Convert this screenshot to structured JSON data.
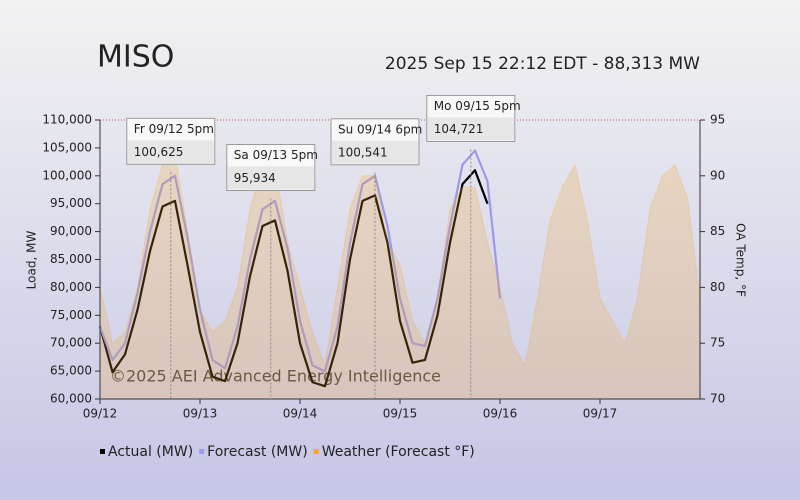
{
  "chart_data": {
    "type": "line",
    "title": "MISO",
    "subtitle": "2025 Sep 15 22:12 EDT - 88,313 MW",
    "watermark": "©2025 AEI Advanced Energy Intelligence",
    "y_label": "Load, MW",
    "y2_label": "OA Temp, °F",
    "x": [
      0,
      0.125,
      0.25,
      0.375,
      0.5,
      0.625,
      0.75,
      0.875,
      1,
      1.125,
      1.25,
      1.375,
      1.5,
      1.625,
      1.75,
      1.875,
      2,
      2.125,
      2.25,
      2.375,
      2.5,
      2.625,
      2.75,
      2.875,
      3,
      3.125,
      3.25,
      3.375,
      3.5,
      3.625,
      3.75,
      3.875,
      4,
      4.125,
      4.25,
      4.375,
      4.5,
      4.625,
      4.75,
      4.875,
      5,
      5.125,
      5.25,
      5.375,
      5.5,
      5.625,
      5.75,
      5.875,
      6
    ],
    "xlim": [
      0,
      6
    ],
    "xticks": [
      {
        "value": 0,
        "label": "09/12"
      },
      {
        "value": 1,
        "label": "09/13"
      },
      {
        "value": 2,
        "label": "09/14"
      },
      {
        "value": 3,
        "label": "09/15"
      },
      {
        "value": 4,
        "label": "09/16"
      },
      {
        "value": 5,
        "label": "09/17"
      }
    ],
    "ylim": [
      60000,
      110000
    ],
    "yticks": [
      {
        "value": 60000,
        "label": "60,000"
      },
      {
        "value": 65000,
        "label": "65,000"
      },
      {
        "value": 70000,
        "label": "70,000"
      },
      {
        "value": 75000,
        "label": "75,000"
      },
      {
        "value": 80000,
        "label": "80,000"
      },
      {
        "value": 85000,
        "label": "85,000"
      },
      {
        "value": 90000,
        "label": "90,000"
      },
      {
        "value": 95000,
        "label": "95,000"
      },
      {
        "value": 100000,
        "label": "100,000"
      },
      {
        "value": 105000,
        "label": "105,000"
      },
      {
        "value": 110000,
        "label": "110,000"
      }
    ],
    "y2lim": [
      70,
      95
    ],
    "y2ticks": [
      70,
      75,
      80,
      85,
      90,
      95
    ],
    "series": [
      {
        "name": "Actual (MW)",
        "color": "#000000",
        "values": [
          73000,
          64800,
          68000,
          76000,
          86500,
          94500,
          95500,
          84000,
          72000,
          64000,
          63200,
          70000,
          82000,
          91000,
          92000,
          83000,
          70000,
          63000,
          62300,
          70000,
          85000,
          95500,
          96500,
          88000,
          74000,
          66500,
          67000,
          75000,
          88000,
          98500,
          101000,
          95000,
          null,
          null,
          null,
          null,
          null,
          null,
          null,
          null,
          null,
          null,
          null,
          null,
          null,
          null,
          null,
          null,
          null
        ]
      },
      {
        "name": "Forecast (MW)",
        "color": "#9a9ae8",
        "values": [
          73000,
          67000,
          70000,
          79000,
          90000,
          98500,
          100000,
          89000,
          76000,
          67000,
          65500,
          73000,
          85000,
          94000,
          95500,
          87000,
          74000,
          66000,
          65000,
          73000,
          88000,
          98500,
          100000,
          91000,
          78000,
          70000,
          69500,
          78000,
          91000,
          102000,
          104500,
          99000,
          78000,
          null,
          null,
          null,
          null,
          null,
          null,
          null,
          null,
          null,
          null,
          null,
          null,
          null,
          null,
          null,
          null
        ]
      },
      {
        "name": "Weather (Forecast °F)",
        "color": "#f5a623",
        "axis": "y2",
        "values": [
          80,
          75,
          76,
          80,
          87,
          91,
          92,
          85,
          78,
          76,
          77,
          80,
          87,
          91,
          91,
          84,
          80,
          76,
          73,
          80,
          87,
          90,
          90,
          84,
          82,
          77,
          75,
          79,
          87,
          89,
          89,
          84,
          80,
          75,
          73,
          79,
          86,
          89,
          91,
          86,
          79,
          77,
          75,
          79,
          87,
          90,
          91,
          88,
          79
        ]
      }
    ],
    "annotations": [
      {
        "x": 0.708,
        "title": "Fr 09/12 5pm",
        "value": 100625,
        "value_label": "100,625"
      },
      {
        "x": 1.708,
        "title": "Sa 09/13 5pm",
        "value": 95934,
        "value_label": "95,934"
      },
      {
        "x": 2.75,
        "title": "Su 09/14 6pm",
        "value": 100541,
        "value_label": "100,541"
      },
      {
        "x": 3.708,
        "title": "Mo 09/15 5pm",
        "value": 104721,
        "value_label": "104,721",
        "color": "#dd0000"
      }
    ]
  }
}
